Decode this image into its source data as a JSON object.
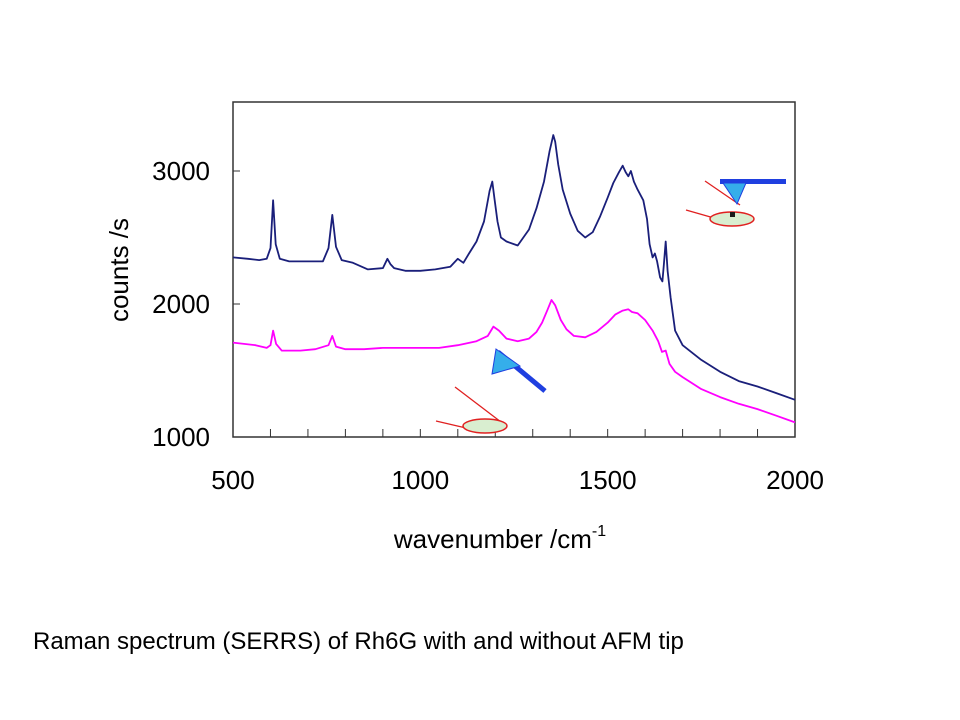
{
  "chart_data": {
    "type": "line",
    "xlabel": "wavenumber /cm",
    "xlabel_superscript": "-1",
    "ylabel": "counts /s",
    "xlim": [
      500,
      2000
    ],
    "ylim": [
      1000,
      3500
    ],
    "x_ticks": [
      500,
      1000,
      1500,
      2000
    ],
    "y_ticks": [
      1000,
      2000,
      3000
    ],
    "grid": false,
    "legend": "none",
    "series": [
      {
        "color": "#1a1f7a",
        "x": [
          500,
          540,
          570,
          590,
          600,
          607,
          614,
          625,
          650,
          700,
          740,
          755,
          765,
          775,
          790,
          820,
          860,
          900,
          912,
          920,
          930,
          960,
          1000,
          1040,
          1080,
          1100,
          1115,
          1130,
          1150,
          1170,
          1185,
          1192,
          1198,
          1206,
          1215,
          1230,
          1260,
          1290,
          1310,
          1330,
          1345,
          1355,
          1360,
          1368,
          1380,
          1400,
          1420,
          1440,
          1460,
          1480,
          1500,
          1515,
          1530,
          1540,
          1548,
          1555,
          1562,
          1570,
          1580,
          1595,
          1605,
          1612,
          1620,
          1626,
          1632,
          1640,
          1646,
          1650,
          1655,
          1660,
          1668,
          1680,
          1700,
          1750,
          1800,
          1850,
          1900,
          1950,
          2000
        ],
        "y": [
          2350,
          2340,
          2330,
          2340,
          2420,
          2780,
          2450,
          2340,
          2320,
          2320,
          2320,
          2420,
          2670,
          2430,
          2330,
          2310,
          2260,
          2270,
          2340,
          2300,
          2270,
          2250,
          2250,
          2260,
          2280,
          2340,
          2310,
          2380,
          2470,
          2620,
          2850,
          2920,
          2790,
          2620,
          2500,
          2470,
          2440,
          2560,
          2720,
          2920,
          3150,
          3270,
          3220,
          3050,
          2860,
          2680,
          2550,
          2500,
          2540,
          2660,
          2800,
          2910,
          2990,
          3040,
          2990,
          2960,
          3000,
          2920,
          2860,
          2780,
          2640,
          2450,
          2350,
          2380,
          2320,
          2200,
          2170,
          2300,
          2470,
          2250,
          2050,
          1800,
          1690,
          1580,
          1490,
          1420,
          1380,
          1330,
          1280
        ]
      },
      {
        "color": "#ff00ff",
        "x": [
          500,
          560,
          590,
          600,
          607,
          615,
          630,
          680,
          720,
          755,
          765,
          775,
          800,
          850,
          900,
          950,
          1000,
          1050,
          1100,
          1150,
          1180,
          1195,
          1210,
          1230,
          1260,
          1290,
          1310,
          1325,
          1340,
          1350,
          1360,
          1375,
          1390,
          1410,
          1440,
          1470,
          1500,
          1520,
          1540,
          1555,
          1565,
          1580,
          1600,
          1620,
          1635,
          1645,
          1655,
          1665,
          1680,
          1700,
          1750,
          1800,
          1850,
          1900,
          1950,
          2000
        ],
        "y": [
          1710,
          1690,
          1670,
          1690,
          1800,
          1700,
          1650,
          1650,
          1660,
          1690,
          1760,
          1680,
          1660,
          1660,
          1670,
          1670,
          1670,
          1670,
          1690,
          1720,
          1760,
          1830,
          1800,
          1740,
          1720,
          1740,
          1790,
          1860,
          1960,
          2030,
          1990,
          1880,
          1810,
          1760,
          1750,
          1790,
          1860,
          1920,
          1950,
          1960,
          1940,
          1930,
          1880,
          1800,
          1720,
          1640,
          1650,
          1550,
          1490,
          1450,
          1360,
          1300,
          1250,
          1210,
          1160,
          1110
        ]
      }
    ]
  },
  "caption": "Raman spectrum (SERRS) of Rh6G with and without AFM tip",
  "icons": {
    "with_tip": "afm-tip-with-sample",
    "without_tip": "afm-tip-retracted-sample"
  }
}
